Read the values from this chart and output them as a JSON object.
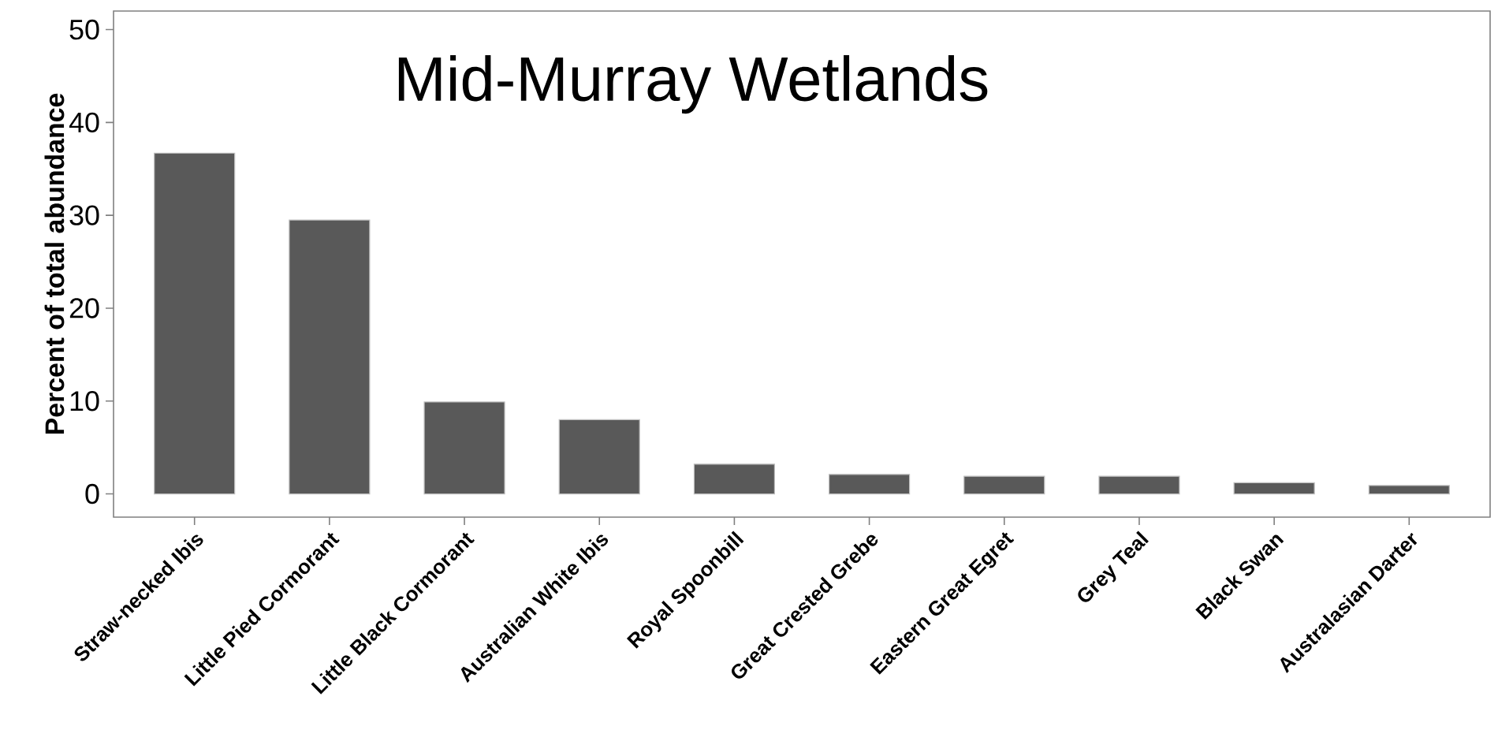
{
  "chart_data": {
    "type": "bar",
    "title": "Mid-Murray Wetlands",
    "ylabel": "Percent of total abundance",
    "categories": [
      "Straw-necked Ibis",
      "Little Pied Cormorant",
      "Little Black Cormorant",
      "Australian White Ibis",
      "Royal Spoonbill",
      "Great Crested Grebe",
      "Eastern Great Egret",
      "Grey Teal",
      "Black Swan",
      "Australasian Darter"
    ],
    "values": [
      36.7,
      29.5,
      9.9,
      8.0,
      3.2,
      2.1,
      1.9,
      1.9,
      1.2,
      0.9
    ],
    "color": "#595959",
    "ylim": [
      -2.5,
      52
    ],
    "yticks": [
      0,
      10,
      20,
      30,
      40,
      50
    ],
    "grid": false
  }
}
